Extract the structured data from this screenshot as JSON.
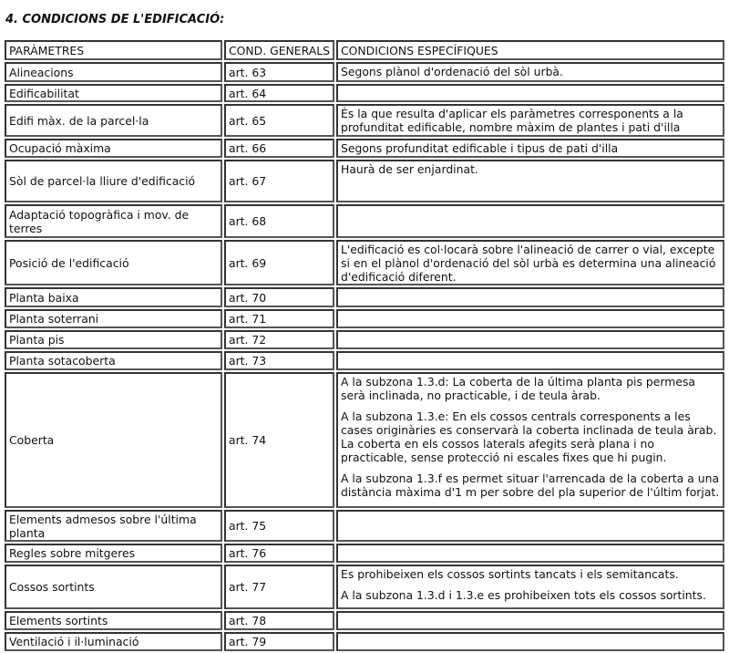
{
  "title": "4. CONDICIONS DE L'EDIFICACIÓ:",
  "headers": [
    "PARÀMETRES",
    "COND. GENERALS",
    "CONDICIONS ESPECÍFIQUES"
  ],
  "rows": [
    {
      "param": "Alineacions",
      "art": "art. 63",
      "specific": [
        "Segons plànol d'ordenació del sòl urbà."
      ]
    },
    {
      "param": "Edificabilitat",
      "art": "art. 64",
      "specific": []
    },
    {
      "param": "Edifi màx. de la parcel·la",
      "art": "art. 65",
      "specific": [
        "És la que resulta d'aplicar els paràmetres corresponents a la profunditat edificable, nombre màxim de plantes i pati d'illa"
      ]
    },
    {
      "param": "Ocupació màxima",
      "art": "art. 66",
      "specific": [
        "Segons profunditat edificable i tipus de pati d'illa"
      ]
    },
    {
      "param": "Sòl de parcel·la lliure d'edificació",
      "art": "art. 67",
      "specific": [
        "Haurà de ser enjardinat."
      ]
    },
    {
      "param": "Adaptació topogràfica i mov. de terres",
      "art": "art. 68",
      "specific": []
    },
    {
      "param": "Posició de l'edificació",
      "art": "art. 69",
      "specific": [
        "L'edificació es col·locarà sobre l'alineació de carrer o vial, excepte si en el plànol d'ordenació del sòl urbà es determina una alineació d'edificació diferent."
      ]
    },
    {
      "param": "Planta baixa",
      "art": "art. 70",
      "specific": []
    },
    {
      "param": "Planta soterrani",
      "art": "art. 71",
      "specific": []
    },
    {
      "param": "Planta pis",
      "art": "art. 72",
      "specific": []
    },
    {
      "param": "Planta sotacoberta",
      "art": "art. 73",
      "specific": []
    },
    {
      "param": "Coberta",
      "art": "art. 74",
      "specific": [
        "A la subzona 1.3.d: La coberta de la última planta pis permesa serà inclinada, no practicable, i de teula àrab.",
        "A la subzona 1.3.e: En els cossos centrals corresponents a les cases originàries es conservarà la coberta inclinada de teula àrab. La coberta en els cossos laterals afegits serà plana i no practicable, sense protecció ni escales fixes que hi pugin.",
        "A la subzona 1.3.f es permet situar l'arrencada de la coberta a una distància màxima d'1 m per sobre del pla superior de l'últim forjat."
      ]
    },
    {
      "param": "Elements admesos sobre l'última planta",
      "art": "art. 75",
      "specific": []
    },
    {
      "param": "Regles sobre mitgeres",
      "art": "art. 76",
      "specific": []
    },
    {
      "param": "Cossos sortints",
      "art": "art. 77",
      "specific": [
        "Es prohibeixen els cossos sortints tancats i els semitancats.",
        "A la subzona 1.3.d i 1.3.e es prohibeixen tots els cossos sortints."
      ]
    },
    {
      "param": "Elements sortints",
      "art": "art. 78",
      "specific": []
    },
    {
      "param": "Ventilació i il·luminació",
      "art": "art. 79",
      "specific": []
    }
  ]
}
